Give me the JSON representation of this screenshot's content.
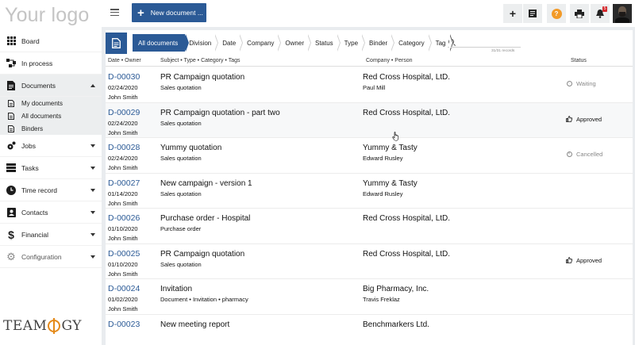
{
  "app": {
    "logo_text": "Your logo",
    "brand_text": "TEAMOGY"
  },
  "topbar": {
    "new_document_label": "New document ...",
    "notification_count": "5",
    "help_label": "?"
  },
  "sidebar": {
    "items": [
      {
        "label": "Board",
        "icon": "grid-icon"
      },
      {
        "label": "In process",
        "icon": "flow-icon"
      },
      {
        "label": "Documents",
        "icon": "document-icon"
      },
      {
        "label": "Jobs",
        "icon": "jobs-icon"
      },
      {
        "label": "Tasks",
        "icon": "tasks-icon"
      },
      {
        "label": "Time record",
        "icon": "clock-icon"
      },
      {
        "label": "Contacts",
        "icon": "contacts-icon"
      },
      {
        "label": "Financial",
        "icon": "dollar-icon"
      },
      {
        "label": "Configuration",
        "icon": "gear-icon"
      }
    ],
    "subitems": [
      {
        "label": "My documents"
      },
      {
        "label": "All documents"
      },
      {
        "label": "Binders"
      }
    ]
  },
  "filters": {
    "crumbs": [
      "All documents",
      "Division",
      "Date",
      "Company",
      "Owner",
      "Status",
      "Type",
      "Binder",
      "Category",
      "Tag"
    ],
    "search_placeholder": "",
    "records_text": "31/31 records"
  },
  "columns": {
    "date_owner": "Date • Owner",
    "subject": "Subject • Type • Category • Tags",
    "company": "Company • Person",
    "status": "Status"
  },
  "rows": [
    {
      "id": "D-00030",
      "date": "02/24/2020",
      "owner": "John Smith",
      "subject": "PR Campaign quotation",
      "type": "Sales quotation",
      "company": "Red Cross Hospital, LtD.",
      "person": "Paul Mill",
      "status": "Waiting"
    },
    {
      "id": "D-00029",
      "date": "02/24/2020",
      "owner": "John Smith",
      "subject": "PR Campaign quotation - part two",
      "type": "Sales quotation",
      "company": "Red Cross Hospital, LtD.",
      "person": "",
      "status": "Approved"
    },
    {
      "id": "D-00028",
      "date": "02/24/2020",
      "owner": "John Smith",
      "subject": "Yummy quotation",
      "type": "Sales quotation",
      "company": "Yummy & Tasty",
      "person": "Edward Rusley",
      "status": "Cancelled"
    },
    {
      "id": "D-00027",
      "date": "01/14/2020",
      "owner": "John Smith",
      "subject": "New campaign - version 1",
      "type": "Sales quotation",
      "company": "Yummy & Tasty",
      "person": "Edward Rusley",
      "status": ""
    },
    {
      "id": "D-00026",
      "date": "01/10/2020",
      "owner": "John Smith",
      "subject": "Purchase order - Hospital",
      "type": "Purchase order",
      "company": "Red Cross Hospital, LtD.",
      "person": "",
      "status": ""
    },
    {
      "id": "D-00025",
      "date": "01/10/2020",
      "owner": "John Smith",
      "subject": "PR Campaign quotation",
      "type": "Sales quotation",
      "company": "Red Cross Hospital, LtD.",
      "person": "",
      "status": "Approved"
    },
    {
      "id": "D-00024",
      "date": "01/02/2020",
      "owner": "John Smith",
      "subject": "Invitation",
      "type": "Document • Invitation • pharmacy",
      "company": "Big Pharmacy, Inc.",
      "person": "Travis Freklaz",
      "status": ""
    },
    {
      "id": "D-00023",
      "date": "",
      "owner": "",
      "subject": "New meeting report",
      "type": "",
      "company": "Benchmarkers Ltd.",
      "person": "",
      "status": ""
    }
  ],
  "colors": {
    "primary": "#2b5a96",
    "accent": "#f29a28",
    "badge": "#d4282b"
  }
}
